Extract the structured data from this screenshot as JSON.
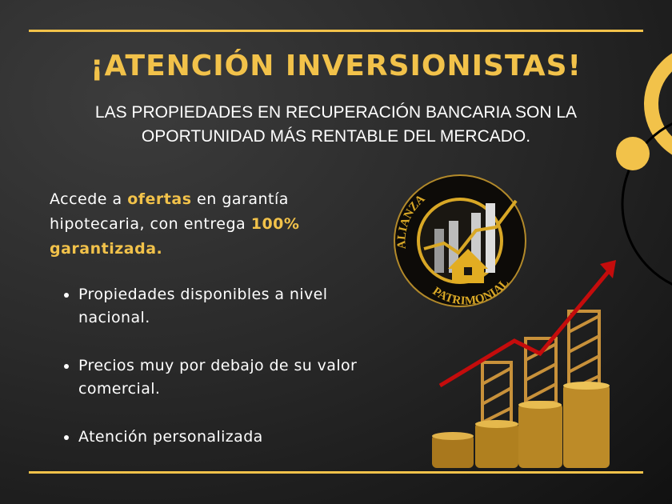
{
  "header": {
    "title": "¡ATENCIÓN INVERSIONISTAS!",
    "subtitle": "LAS PROPIEDADES EN RECUPERACIÓN BANCARIA SON LA OPORTUNIDAD MÁS RENTABLE DEL MERCADO."
  },
  "intro": {
    "t1": "Accede a ",
    "h1": "ofertas",
    "t2": " en garantía hipotecaria, con entrega ",
    "h2": "100% garantizada."
  },
  "bullets": [
    "Propiedades disponibles a nivel nacional.",
    "Precios muy por debajo de su valor comercial.",
    "Atención personalizada"
  ],
  "logo": {
    "top": "ALIANZA",
    "bottom": "PATRIMONIAL"
  },
  "colors": {
    "accent": "#f2c24a",
    "arrow": "#c40c0c"
  }
}
